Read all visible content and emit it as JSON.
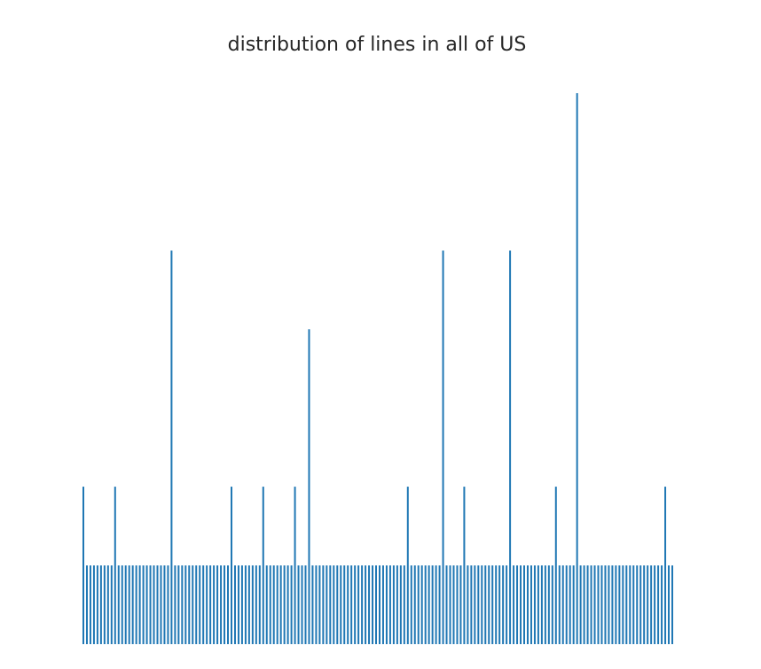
{
  "chart_data": {
    "type": "bar",
    "title": "distribution of lines in all of US",
    "xlabel": "",
    "ylabel": "",
    "grid": false,
    "axes_visible": false,
    "color": "#1f77b4",
    "ylim": [
      0,
      7
    ],
    "bars": [
      {
        "x": 0,
        "y": 2
      },
      {
        "x": 1,
        "y": 1
      },
      {
        "x": 2,
        "y": 1
      },
      {
        "x": 3,
        "y": 1
      },
      {
        "x": 4,
        "y": 1
      },
      {
        "x": 5,
        "y": 1
      },
      {
        "x": 6,
        "y": 1
      },
      {
        "x": 7,
        "y": 1
      },
      {
        "x": 8,
        "y": 1
      },
      {
        "x": 9,
        "y": 2
      },
      {
        "x": 10,
        "y": 1
      },
      {
        "x": 11,
        "y": 1
      },
      {
        "x": 12,
        "y": 1
      },
      {
        "x": 13,
        "y": 1
      },
      {
        "x": 14,
        "y": 1
      },
      {
        "x": 15,
        "y": 1
      },
      {
        "x": 16,
        "y": 1
      },
      {
        "x": 17,
        "y": 1
      },
      {
        "x": 18,
        "y": 1
      },
      {
        "x": 19,
        "y": 1
      },
      {
        "x": 20,
        "y": 1
      },
      {
        "x": 21,
        "y": 1
      },
      {
        "x": 22,
        "y": 1
      },
      {
        "x": 23,
        "y": 1
      },
      {
        "x": 24,
        "y": 1
      },
      {
        "x": 25,
        "y": 5
      },
      {
        "x": 26,
        "y": 1
      },
      {
        "x": 27,
        "y": 1
      },
      {
        "x": 28,
        "y": 1
      },
      {
        "x": 29,
        "y": 1
      },
      {
        "x": 30,
        "y": 1
      },
      {
        "x": 31,
        "y": 1
      },
      {
        "x": 32,
        "y": 1
      },
      {
        "x": 33,
        "y": 1
      },
      {
        "x": 34,
        "y": 1
      },
      {
        "x": 35,
        "y": 1
      },
      {
        "x": 36,
        "y": 1
      },
      {
        "x": 37,
        "y": 1
      },
      {
        "x": 38,
        "y": 1
      },
      {
        "x": 39,
        "y": 1
      },
      {
        "x": 40,
        "y": 1
      },
      {
        "x": 41,
        "y": 1
      },
      {
        "x": 42,
        "y": 2
      },
      {
        "x": 43,
        "y": 1
      },
      {
        "x": 44,
        "y": 1
      },
      {
        "x": 45,
        "y": 1
      },
      {
        "x": 46,
        "y": 1
      },
      {
        "x": 47,
        "y": 1
      },
      {
        "x": 48,
        "y": 1
      },
      {
        "x": 49,
        "y": 1
      },
      {
        "x": 50,
        "y": 1
      },
      {
        "x": 51,
        "y": 2
      },
      {
        "x": 52,
        "y": 1
      },
      {
        "x": 53,
        "y": 1
      },
      {
        "x": 54,
        "y": 1
      },
      {
        "x": 55,
        "y": 1
      },
      {
        "x": 56,
        "y": 1
      },
      {
        "x": 57,
        "y": 1
      },
      {
        "x": 58,
        "y": 1
      },
      {
        "x": 59,
        "y": 1
      },
      {
        "x": 60,
        "y": 2
      },
      {
        "x": 61,
        "y": 1
      },
      {
        "x": 62,
        "y": 1
      },
      {
        "x": 63,
        "y": 1
      },
      {
        "x": 64,
        "y": 4
      },
      {
        "x": 65,
        "y": 1
      },
      {
        "x": 66,
        "y": 1
      },
      {
        "x": 67,
        "y": 1
      },
      {
        "x": 68,
        "y": 1
      },
      {
        "x": 69,
        "y": 1
      },
      {
        "x": 70,
        "y": 1
      },
      {
        "x": 71,
        "y": 1
      },
      {
        "x": 72,
        "y": 1
      },
      {
        "x": 73,
        "y": 1
      },
      {
        "x": 74,
        "y": 1
      },
      {
        "x": 75,
        "y": 1
      },
      {
        "x": 76,
        "y": 1
      },
      {
        "x": 77,
        "y": 1
      },
      {
        "x": 78,
        "y": 1
      },
      {
        "x": 79,
        "y": 1
      },
      {
        "x": 80,
        "y": 1
      },
      {
        "x": 81,
        "y": 1
      },
      {
        "x": 82,
        "y": 1
      },
      {
        "x": 83,
        "y": 1
      },
      {
        "x": 84,
        "y": 1
      },
      {
        "x": 85,
        "y": 1
      },
      {
        "x": 86,
        "y": 1
      },
      {
        "x": 87,
        "y": 1
      },
      {
        "x": 88,
        "y": 1
      },
      {
        "x": 89,
        "y": 1
      },
      {
        "x": 90,
        "y": 1
      },
      {
        "x": 91,
        "y": 1
      },
      {
        "x": 92,
        "y": 2
      },
      {
        "x": 93,
        "y": 1
      },
      {
        "x": 94,
        "y": 1
      },
      {
        "x": 95,
        "y": 1
      },
      {
        "x": 96,
        "y": 1
      },
      {
        "x": 97,
        "y": 1
      },
      {
        "x": 98,
        "y": 1
      },
      {
        "x": 99,
        "y": 1
      },
      {
        "x": 100,
        "y": 1
      },
      {
        "x": 101,
        "y": 1
      },
      {
        "x": 102,
        "y": 5
      },
      {
        "x": 103,
        "y": 1
      },
      {
        "x": 104,
        "y": 1
      },
      {
        "x": 105,
        "y": 1
      },
      {
        "x": 106,
        "y": 1
      },
      {
        "x": 107,
        "y": 1
      },
      {
        "x": 108,
        "y": 2
      },
      {
        "x": 109,
        "y": 1
      },
      {
        "x": 110,
        "y": 1
      },
      {
        "x": 111,
        "y": 1
      },
      {
        "x": 112,
        "y": 1
      },
      {
        "x": 113,
        "y": 1
      },
      {
        "x": 114,
        "y": 1
      },
      {
        "x": 115,
        "y": 1
      },
      {
        "x": 116,
        "y": 1
      },
      {
        "x": 117,
        "y": 1
      },
      {
        "x": 118,
        "y": 1
      },
      {
        "x": 119,
        "y": 1
      },
      {
        "x": 120,
        "y": 1
      },
      {
        "x": 121,
        "y": 5
      },
      {
        "x": 122,
        "y": 1
      },
      {
        "x": 123,
        "y": 1
      },
      {
        "x": 124,
        "y": 1
      },
      {
        "x": 125,
        "y": 1
      },
      {
        "x": 126,
        "y": 1
      },
      {
        "x": 127,
        "y": 1
      },
      {
        "x": 128,
        "y": 1
      },
      {
        "x": 129,
        "y": 1
      },
      {
        "x": 130,
        "y": 1
      },
      {
        "x": 131,
        "y": 1
      },
      {
        "x": 132,
        "y": 1
      },
      {
        "x": 133,
        "y": 1
      },
      {
        "x": 134,
        "y": 2
      },
      {
        "x": 135,
        "y": 1
      },
      {
        "x": 136,
        "y": 1
      },
      {
        "x": 137,
        "y": 1
      },
      {
        "x": 138,
        "y": 1
      },
      {
        "x": 139,
        "y": 1
      },
      {
        "x": 140,
        "y": 7
      },
      {
        "x": 141,
        "y": 1
      },
      {
        "x": 142,
        "y": 1
      },
      {
        "x": 143,
        "y": 1
      },
      {
        "x": 144,
        "y": 1
      },
      {
        "x": 145,
        "y": 1
      },
      {
        "x": 146,
        "y": 1
      },
      {
        "x": 147,
        "y": 1
      },
      {
        "x": 148,
        "y": 1
      },
      {
        "x": 149,
        "y": 1
      },
      {
        "x": 150,
        "y": 1
      },
      {
        "x": 151,
        "y": 1
      },
      {
        "x": 152,
        "y": 1
      },
      {
        "x": 153,
        "y": 1
      },
      {
        "x": 154,
        "y": 1
      },
      {
        "x": 155,
        "y": 1
      },
      {
        "x": 156,
        "y": 1
      },
      {
        "x": 157,
        "y": 1
      },
      {
        "x": 158,
        "y": 1
      },
      {
        "x": 159,
        "y": 1
      },
      {
        "x": 160,
        "y": 1
      },
      {
        "x": 161,
        "y": 1
      },
      {
        "x": 162,
        "y": 1
      },
      {
        "x": 163,
        "y": 1
      },
      {
        "x": 164,
        "y": 1
      },
      {
        "x": 165,
        "y": 2
      },
      {
        "x": 166,
        "y": 1
      },
      {
        "x": 167,
        "y": 1
      }
    ]
  }
}
